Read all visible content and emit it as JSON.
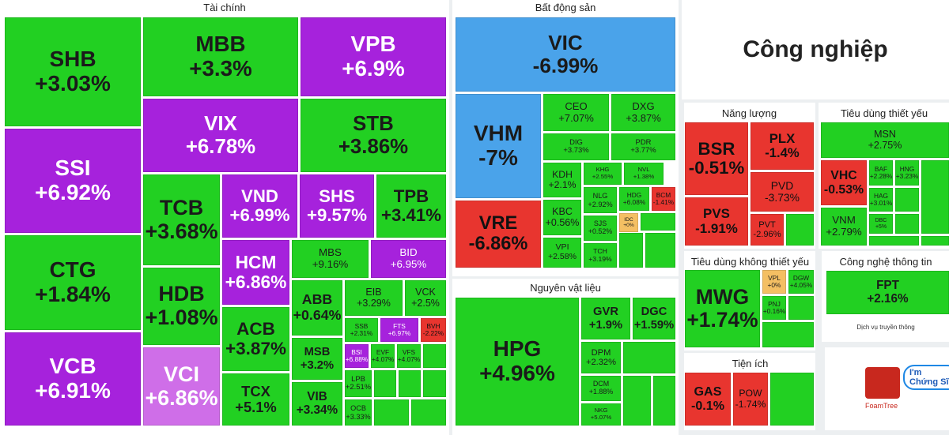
{
  "sectors": [
    {
      "title": "Tài chính",
      "tiles": [
        {
          "ticker": "SHB",
          "change": "+3.03%"
        },
        {
          "ticker": "SSI",
          "change": "+6.92%"
        },
        {
          "ticker": "CTG",
          "change": "+1.84%"
        },
        {
          "ticker": "VCB",
          "change": "+6.91%"
        },
        {
          "ticker": "MBB",
          "change": "+3.3%"
        },
        {
          "ticker": "VPB",
          "change": "+6.9%"
        },
        {
          "ticker": "VIX",
          "change": "+6.78%"
        },
        {
          "ticker": "STB",
          "change": "+3.86%"
        },
        {
          "ticker": "TCB",
          "change": "+3.68%"
        },
        {
          "ticker": "HDB",
          "change": "+1.08%"
        },
        {
          "ticker": "VCI",
          "change": "+6.86%"
        },
        {
          "ticker": "VND",
          "change": "+6.99%"
        },
        {
          "ticker": "SHS",
          "change": "+9.57%"
        },
        {
          "ticker": "TPB",
          "change": "+3.41%"
        },
        {
          "ticker": "HCM",
          "change": "+6.86%"
        },
        {
          "ticker": "ACB",
          "change": "+3.87%"
        },
        {
          "ticker": "TCX",
          "change": "+5.1%"
        },
        {
          "ticker": "MBS",
          "change": "+9.16%"
        },
        {
          "ticker": "BID",
          "change": "+6.95%"
        },
        {
          "ticker": "ABB",
          "change": "+0.64%"
        },
        {
          "ticker": "MSB",
          "change": "+3.2%"
        },
        {
          "ticker": "VIB",
          "change": "+3.34%"
        },
        {
          "ticker": "EIB",
          "change": "+3.29%"
        },
        {
          "ticker": "VCK",
          "change": "+2.5%"
        },
        {
          "ticker": "SSB",
          "change": "+2.31%"
        },
        {
          "ticker": "FTS",
          "change": "+6.97%"
        },
        {
          "ticker": "BVH",
          "change": "-2.22%"
        },
        {
          "ticker": "BSI",
          "change": "+6.88%"
        },
        {
          "ticker": "EVF",
          "change": "+4.07%"
        },
        {
          "ticker": "VFS",
          "change": "+4.07%"
        },
        {
          "ticker": "LPB",
          "change": "+2.51%"
        },
        {
          "ticker": "OCB",
          "change": "+3.33%"
        }
      ]
    },
    {
      "title": "Bất động sản",
      "tiles": [
        {
          "ticker": "VIC",
          "change": "-6.99%"
        },
        {
          "ticker": "VHM",
          "change": "-7%"
        },
        {
          "ticker": "VRE",
          "change": "-6.86%"
        },
        {
          "ticker": "CEO",
          "change": "+7.07%"
        },
        {
          "ticker": "DXG",
          "change": "+3.87%"
        },
        {
          "ticker": "DIG",
          "change": "+3.73%"
        },
        {
          "ticker": "PDR",
          "change": "+3.77%"
        },
        {
          "ticker": "KDH",
          "change": "+2.1%"
        },
        {
          "ticker": "KHG",
          "change": "+2.55%"
        },
        {
          "ticker": "NVL",
          "change": "+1.38%"
        },
        {
          "ticker": "KBC",
          "change": "+0.56%"
        },
        {
          "ticker": "NLG",
          "change": "+2.92%"
        },
        {
          "ticker": "HDG",
          "change": "+6.08%"
        },
        {
          "ticker": "BCM",
          "change": "-1.41%"
        },
        {
          "ticker": "VPI",
          "change": "+2.58%"
        },
        {
          "ticker": "SJS",
          "change": "+0.52%"
        },
        {
          "ticker": "TCH",
          "change": "+3.19%"
        },
        {
          "ticker": "IDC",
          "change": "+0%"
        }
      ]
    },
    {
      "title": "Nguyên vật liệu",
      "tiles": [
        {
          "ticker": "HPG",
          "change": "+4.96%"
        },
        {
          "ticker": "GVR",
          "change": "+1.9%"
        },
        {
          "ticker": "DGC",
          "change": "+1.59%"
        },
        {
          "ticker": "DPM",
          "change": "+2.32%"
        },
        {
          "ticker": "DCM",
          "change": "+1.88%"
        },
        {
          "ticker": "NKG",
          "change": "+5.07%"
        }
      ]
    },
    {
      "title": "Năng lượng",
      "tiles": [
        {
          "ticker": "BSR",
          "change": "-0.51%"
        },
        {
          "ticker": "PLX",
          "change": "-1.4%"
        },
        {
          "ticker": "PVD",
          "change": "-3.73%"
        },
        {
          "ticker": "PVS",
          "change": "-1.91%"
        },
        {
          "ticker": "PVT",
          "change": "-2.96%"
        }
      ]
    },
    {
      "title": "Tiêu dùng thiết yếu",
      "tiles": [
        {
          "ticker": "MSN",
          "change": "+2.75%"
        },
        {
          "ticker": "VHC",
          "change": "-0.53%"
        },
        {
          "ticker": "BAF",
          "change": "+2.28%"
        },
        {
          "ticker": "HNG",
          "change": "+3.23%"
        },
        {
          "ticker": "HAG",
          "change": "+3.01%"
        },
        {
          "ticker": "VNM",
          "change": "+2.79%"
        },
        {
          "ticker": "DBC",
          "change": "+5%"
        }
      ]
    },
    {
      "title": "Tiêu dùng không thiết yếu",
      "tiles": [
        {
          "ticker": "MWG",
          "change": "+1.74%"
        },
        {
          "ticker": "VPL",
          "change": "+0%"
        },
        {
          "ticker": "DGW",
          "change": "+4.05%"
        },
        {
          "ticker": "PNJ",
          "change": "+0.16%"
        }
      ]
    },
    {
      "title": "Tiện ích",
      "tiles": [
        {
          "ticker": "GAS",
          "change": "-0.1%"
        },
        {
          "ticker": "POW",
          "change": "-1.74%"
        }
      ]
    },
    {
      "title": "Công nghệ thông tin",
      "tiles": [
        {
          "ticker": "FPT",
          "change": "+2.16%"
        }
      ]
    }
  ],
  "industry_title": "Công nghiệp",
  "media_label": "Dịch vụ truyền thông",
  "footer": {
    "logo": "FoamTree",
    "badge": "I'm Chứng Sĩ"
  }
}
